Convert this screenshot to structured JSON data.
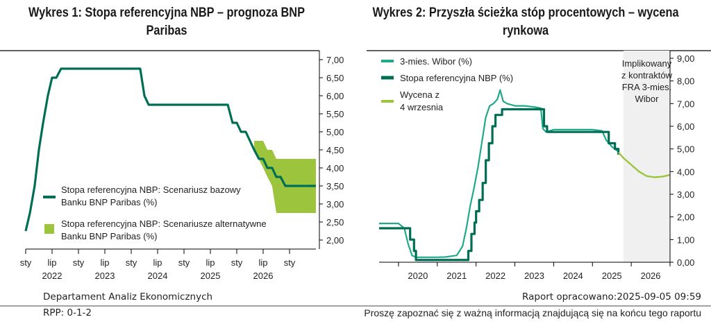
{
  "footer": {
    "department": "Departament Analiz Ekonomicznych",
    "rpp": "RPP: 0-1-2",
    "report_date": "Raport opracowano:2025-09-05 09:59",
    "note": "Proszę zapoznać się z ważną informacją znajdującą się na końcu tego raportu"
  },
  "colors": {
    "dark_green": "#006e55",
    "teal": "#1fa88a",
    "lime": "#9cc43c",
    "shade": "#f0f0f0"
  },
  "chart_data": [
    {
      "type": "line",
      "title": "Wykres 1: Stopa referencyjna NBP – prognoza BNP Paribas",
      "x_ticks": [
        "sty",
        "lip",
        "sty",
        "lip",
        "sty",
        "lip",
        "sty",
        "lip",
        "sty",
        "lip",
        "sty"
      ],
      "year_labels": [
        "2022",
        "2023",
        "2024",
        "2025",
        "2026"
      ],
      "yticks": [
        "7,00",
        "6,50",
        "6,00",
        "5,50",
        "5,00",
        "4,50",
        "4,00",
        "3,50",
        "3,00",
        "2,50",
        "2,00"
      ],
      "ylim": [
        1.75,
        7.25
      ],
      "xlim": [
        2021.5,
        2027.0
      ],
      "series": [
        {
          "name": "Stopa referencyjna NBP: Scenariusz bazowy Banku BNP Paribas (%)",
          "x": [
            2021.5,
            2021.58,
            2021.67,
            2021.75,
            2021.83,
            2021.92,
            2022.0,
            2022.08,
            2022.17,
            2022.25,
            2022.33,
            2022.42,
            2022.5,
            2023.67,
            2023.75,
            2023.83,
            2025.33,
            2025.42,
            2025.5,
            2025.58,
            2025.67,
            2025.75,
            2025.83,
            2025.92,
            2026.0,
            2026.08,
            2026.17,
            2026.25,
            2026.33,
            2026.42,
            2026.5,
            2027.0
          ],
          "y": [
            2.25,
            2.75,
            3.5,
            4.5,
            5.25,
            6.0,
            6.5,
            6.5,
            6.75,
            6.75,
            6.75,
            6.75,
            6.75,
            6.75,
            6.0,
            5.75,
            5.75,
            5.25,
            5.25,
            5.0,
            5.0,
            4.75,
            4.5,
            4.25,
            4.25,
            4.0,
            4.0,
            3.75,
            3.75,
            3.5,
            3.5,
            3.5
          ]
        }
      ],
      "band": {
        "name": "Stopa referencyjna NBP: Scenariusze alternatywne Banku BNP Paribas (%)",
        "x": [
          2025.83,
          2026.0,
          2026.08,
          2026.17,
          2026.25,
          2027.0
        ],
        "upper": [
          4.75,
          4.75,
          4.5,
          4.5,
          4.25,
          4.25
        ],
        "lower": [
          4.5,
          4.0,
          3.75,
          3.5,
          2.75,
          2.75
        ]
      }
    },
    {
      "type": "line",
      "title": "Wykres 2: Przyszła ścieżka stóp procentowych – wycena rynkowa",
      "x_ticks": [
        "2020",
        "2021",
        "2022",
        "2023",
        "2024",
        "2025",
        "2026"
      ],
      "yticks": [
        "9,00",
        "8,00",
        "7,00",
        "6,00",
        "5,00",
        "4,00",
        "3,00",
        "2,00",
        "1,00",
        "0,00"
      ],
      "ylim": [
        0,
        9
      ],
      "xlim": [
        2019.5,
        2027.0
      ],
      "shaded_region": {
        "from": 2025.8,
        "to": 2027.0,
        "label": "Implikowany z kontraktów FRA 3-mies. Wibor"
      },
      "series": [
        {
          "name": "3-mies. Wibor (%)",
          "x": [
            2019.5,
            2019.75,
            2020.0,
            2020.15,
            2020.25,
            2020.35,
            2020.45,
            2021.0,
            2021.2,
            2021.5,
            2021.65,
            2021.75,
            2021.85,
            2021.95,
            2022.05,
            2022.15,
            2022.25,
            2022.35,
            2022.45,
            2022.55,
            2022.62,
            2022.7,
            2022.8,
            2023.0,
            2023.25,
            2023.5,
            2023.67,
            2023.72,
            2023.8,
            2024.0,
            2024.5,
            2025.0,
            2025.25,
            2025.35,
            2025.5,
            2025.65
          ],
          "y": [
            1.71,
            1.71,
            1.71,
            1.5,
            0.8,
            0.3,
            0.22,
            0.22,
            0.23,
            0.3,
            0.7,
            1.5,
            2.5,
            3.3,
            4.2,
            5.3,
            6.4,
            6.9,
            7.0,
            7.2,
            7.6,
            7.1,
            7.0,
            6.9,
            6.9,
            6.85,
            6.8,
            5.9,
            5.75,
            5.85,
            5.85,
            5.85,
            5.8,
            5.4,
            5.1,
            4.9
          ]
        },
        {
          "name": "Stopa referencyjna NBP (%)",
          "x": [
            2019.5,
            2020.2,
            2020.3,
            2020.4,
            2020.45,
            2021.75,
            2021.8,
            2021.88,
            2021.96,
            2022.0,
            2022.08,
            2022.17,
            2022.25,
            2022.33,
            2022.42,
            2022.5,
            2022.58,
            2022.67,
            2023.67,
            2023.75,
            2023.83,
            2025.33,
            2025.42,
            2025.5,
            2025.58,
            2025.67
          ],
          "y": [
            1.5,
            1.5,
            1.0,
            0.5,
            0.1,
            0.1,
            0.5,
            1.25,
            1.75,
            2.25,
            2.75,
            3.5,
            4.5,
            5.25,
            6.0,
            6.5,
            6.5,
            6.75,
            6.75,
            6.0,
            5.75,
            5.75,
            5.25,
            5.25,
            5.0,
            4.75
          ],
          "step": true
        },
        {
          "name": "Wycena z 4 wrzesnia",
          "x": [
            2025.67,
            2025.8,
            2026.0,
            2026.2,
            2026.4,
            2026.6,
            2026.8,
            2027.0
          ],
          "y": [
            4.85,
            4.6,
            4.3,
            4.0,
            3.8,
            3.75,
            3.78,
            3.85
          ]
        }
      ]
    }
  ]
}
